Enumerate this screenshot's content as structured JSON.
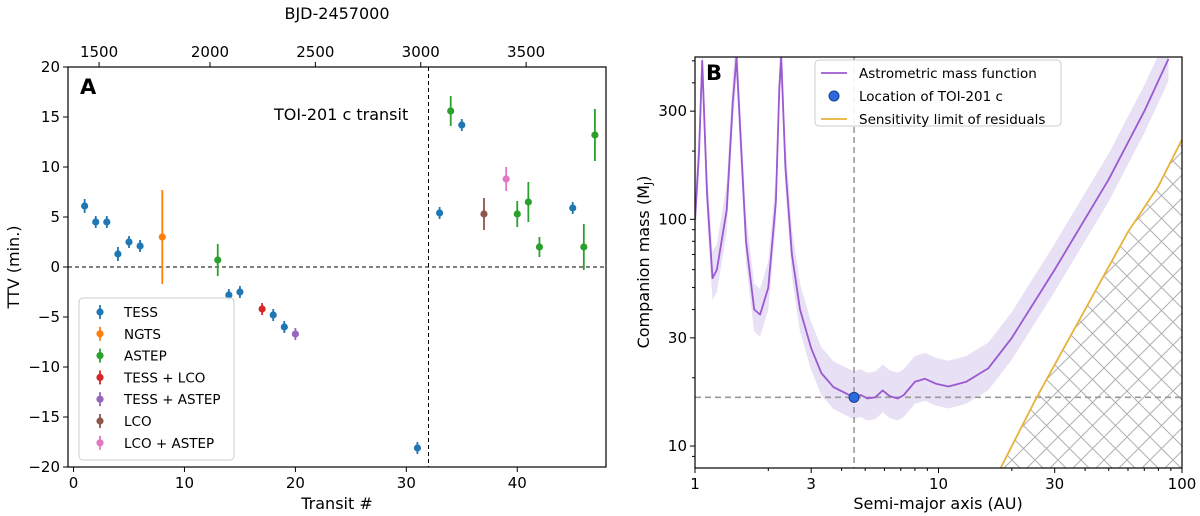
{
  "chart_data": [
    {
      "type": "scatter",
      "panel_label": "A",
      "xlabel": "Transit #",
      "ylabel": "TTV (min.)",
      "top_xlabel": "BJD-2457000",
      "xlim": [
        -0.5,
        48
      ],
      "ylim": [
        -20,
        20
      ],
      "xticks": [
        0,
        10,
        20,
        30,
        40
      ],
      "yticks": [
        -20,
        -15,
        -10,
        -5,
        0,
        5,
        10,
        15,
        20
      ],
      "top_xticks": [
        {
          "label": "1500",
          "transit": 2.3
        },
        {
          "label": "2000",
          "transit": 12.3
        },
        {
          "label": "2500",
          "transit": 21.8
        },
        {
          "label": "3000",
          "transit": 31.3
        },
        {
          "label": "3500",
          "transit": 40.8
        }
      ],
      "annotation": {
        "text": "TOI-201 c transit",
        "x": 32
      },
      "hline": 0,
      "legend_position": "lower-left",
      "series": [
        {
          "name": "TESS",
          "color": "#1f77b4",
          "points": [
            {
              "x": 1,
              "y": 6.1,
              "err": 0.7
            },
            {
              "x": 2,
              "y": 4.5,
              "err": 0.6
            },
            {
              "x": 3,
              "y": 4.5,
              "err": 0.6
            },
            {
              "x": 4,
              "y": 1.3,
              "err": 0.7
            },
            {
              "x": 5,
              "y": 2.5,
              "err": 0.6
            },
            {
              "x": 6,
              "y": 2.1,
              "err": 0.6
            },
            {
              "x": 14,
              "y": -2.8,
              "err": 0.6
            },
            {
              "x": 15,
              "y": -2.5,
              "err": 0.6
            },
            {
              "x": 18,
              "y": -4.8,
              "err": 0.6
            },
            {
              "x": 19,
              "y": -6.0,
              "err": 0.6
            },
            {
              "x": 31,
              "y": -18.1,
              "err": 0.6
            },
            {
              "x": 33,
              "y": 5.4,
              "err": 0.6
            },
            {
              "x": 35,
              "y": 14.2,
              "err": 0.6
            },
            {
              "x": 45,
              "y": 5.9,
              "err": 0.6
            }
          ]
        },
        {
          "name": "NGTS",
          "color": "#ff7f0e",
          "points": [
            {
              "x": 8,
              "y": 3.0,
              "err": 4.7
            }
          ]
        },
        {
          "name": "ASTEP",
          "color": "#2ca02c",
          "points": [
            {
              "x": 13,
              "y": 0.7,
              "err": 1.6
            },
            {
              "x": 34,
              "y": 15.6,
              "err": 1.5
            },
            {
              "x": 40,
              "y": 5.3,
              "err": 1.3
            },
            {
              "x": 41,
              "y": 6.5,
              "err": 2.0
            },
            {
              "x": 42,
              "y": 2.0,
              "err": 1.0
            },
            {
              "x": 46,
              "y": 2.0,
              "err": 2.3
            },
            {
              "x": 47,
              "y": 13.2,
              "err": 2.6
            }
          ]
        },
        {
          "name": "TESS + LCO",
          "color": "#d62728",
          "points": [
            {
              "x": 17,
              "y": -4.2,
              "err": 0.6
            }
          ]
        },
        {
          "name": "TESS + ASTEP",
          "color": "#9467bd",
          "points": [
            {
              "x": 20,
              "y": -6.7,
              "err": 0.6
            }
          ]
        },
        {
          "name": "LCO",
          "color": "#8c564b",
          "points": [
            {
              "x": 37,
              "y": 5.3,
              "err": 1.6
            }
          ]
        },
        {
          "name": "LCO + ASTEP",
          "color": "#e377c2",
          "points": [
            {
              "x": 39,
              "y": 8.8,
              "err": 1.2
            }
          ]
        }
      ]
    },
    {
      "type": "line",
      "panel_label": "B",
      "xlabel": "Semi-major axis (AU)",
      "ylabel": "Companion mass (M",
      "ylabel_sub": "J",
      "ylabel_close": ")",
      "xscale": "log",
      "yscale": "log",
      "xlim": [
        1,
        100
      ],
      "ylim": [
        8,
        520
      ],
      "xticks": [
        {
          "v": 1,
          "label": "1"
        },
        {
          "v": 3,
          "label": "3"
        },
        {
          "v": 10,
          "label": "10"
        },
        {
          "v": 30,
          "label": "30"
        },
        {
          "v": 100,
          "label": "100"
        }
      ],
      "yticks": [
        {
          "v": 10,
          "label": "10"
        },
        {
          "v": 30,
          "label": "30"
        },
        {
          "v": 100,
          "label": "100"
        },
        {
          "v": 300,
          "label": "300"
        }
      ],
      "legend_position": "top-right",
      "colors": {
        "curve": "#9b59d0",
        "band": "#e8e0f5",
        "sensitivity": "#e8b23a",
        "marker": "#2a6be0",
        "hatch": "#b0b0b0"
      },
      "series": [
        {
          "name": "Astrometric mass function",
          "role": "curve",
          "points": [
            [
              1,
              100
            ],
            [
              1.04,
              200
            ],
            [
              1.07,
              500
            ],
            [
              1.12,
              130
            ],
            [
              1.18,
              55
            ],
            [
              1.23,
              60
            ],
            [
              1.35,
              110
            ],
            [
              1.43,
              330
            ],
            [
              1.48,
              520
            ],
            [
              1.55,
              200
            ],
            [
              1.62,
              80
            ],
            [
              1.75,
              40
            ],
            [
              1.85,
              38
            ],
            [
              2.0,
              50
            ],
            [
              2.15,
              120
            ],
            [
              2.22,
              380
            ],
            [
              2.26,
              520
            ],
            [
              2.35,
              170
            ],
            [
              2.5,
              70
            ],
            [
              2.7,
              40
            ],
            [
              3.0,
              27
            ],
            [
              3.3,
              21
            ],
            [
              3.7,
              18.2
            ],
            [
              4.2,
              17
            ],
            [
              4.5,
              16.4
            ],
            [
              4.8,
              16.8
            ],
            [
              5.1,
              16.2
            ],
            [
              5.5,
              16.4
            ],
            [
              5.9,
              17.6
            ],
            [
              6.3,
              16.6
            ],
            [
              6.8,
              16.2
            ],
            [
              7.2,
              16.8
            ],
            [
              8.0,
              19.2
            ],
            [
              8.8,
              19.8
            ],
            [
              9.8,
              18.8
            ],
            [
              11,
              18.3
            ],
            [
              13,
              19.2
            ],
            [
              16,
              22
            ],
            [
              20,
              30
            ],
            [
              30,
              60
            ],
            [
              50,
              150
            ],
            [
              70,
              300
            ],
            [
              88,
              510
            ]
          ]
        },
        {
          "name": "Location of TOI-201 c",
          "role": "marker",
          "x": 4.5,
          "y": 16.4
        },
        {
          "name": "Sensitivity limit of residuals",
          "role": "boundary",
          "points": [
            [
              18,
              8
            ],
            [
              25,
              16
            ],
            [
              40,
              40
            ],
            [
              60,
              88
            ],
            [
              80,
              140
            ],
            [
              100,
              225
            ]
          ]
        }
      ],
      "band": {
        "lower_factor": 0.8,
        "upper_factor": 1.3
      },
      "reference_lines": {
        "x": 4.5,
        "y": 16.4
      }
    }
  ]
}
